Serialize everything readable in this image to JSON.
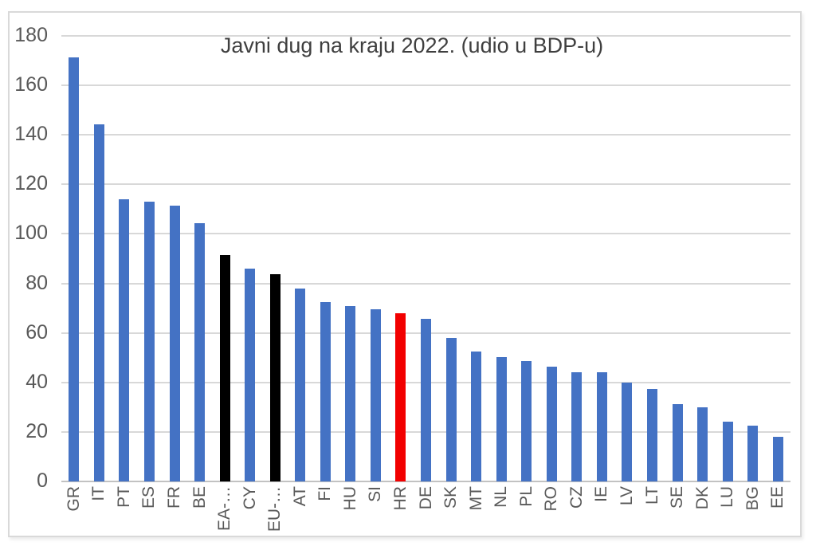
{
  "title": "Javni dug na kraju 2022. (udio u BDP-u)",
  "colors": {
    "bar_member": "#4472C4",
    "bar_aggregate": "#000000",
    "bar_highlight": "#F20000",
    "gridline": "#d8d8d8",
    "axis_line": "#c2c2c2",
    "tick_label": "#595959",
    "title_text": "#3f3f3f",
    "frame_border": "#d9d9d9",
    "background": "#ffffff"
  },
  "chart_data": {
    "type": "bar",
    "title": "Javni dug na kraju 2022. (udio u BDP-u)",
    "xlabel": "",
    "ylabel": "",
    "categories": [
      "GR",
      "IT",
      "PT",
      "ES",
      "FR",
      "BE",
      "EA-…",
      "CY",
      "EU-…",
      "AT",
      "FI",
      "HU",
      "SI",
      "HR",
      "DE",
      "SK",
      "MT",
      "NL",
      "PL",
      "RO",
      "CZ",
      "IE",
      "LV",
      "LT",
      "SE",
      "DK",
      "LU",
      "BG",
      "EE"
    ],
    "values": [
      171.3,
      144.4,
      113.9,
      113.0,
      111.4,
      104.3,
      91.6,
      86.1,
      83.6,
      77.8,
      72.5,
      71.0,
      69.5,
      67.8,
      65.8,
      58.0,
      52.4,
      50.2,
      48.6,
      46.4,
      44.2,
      44.0,
      40.1,
      37.4,
      31.2,
      30.0,
      24.3,
      22.7,
      18.1
    ],
    "bar_roles": [
      "member",
      "member",
      "member",
      "member",
      "member",
      "member",
      "aggregate",
      "member",
      "aggregate",
      "member",
      "member",
      "member",
      "member",
      "highlight",
      "member",
      "member",
      "member",
      "member",
      "member",
      "member",
      "member",
      "member",
      "member",
      "member",
      "member",
      "member",
      "member",
      "member",
      "member"
    ],
    "aggregate_categories": [
      "EA-…",
      "EU-…"
    ],
    "highlighted_category": "HR",
    "ylim": [
      0,
      180
    ],
    "yticks": [
      0,
      20,
      40,
      60,
      80,
      100,
      120,
      140,
      160,
      180
    ],
    "x_tick_rotation_degrees": 90,
    "grid": true,
    "legend_position": "none"
  }
}
